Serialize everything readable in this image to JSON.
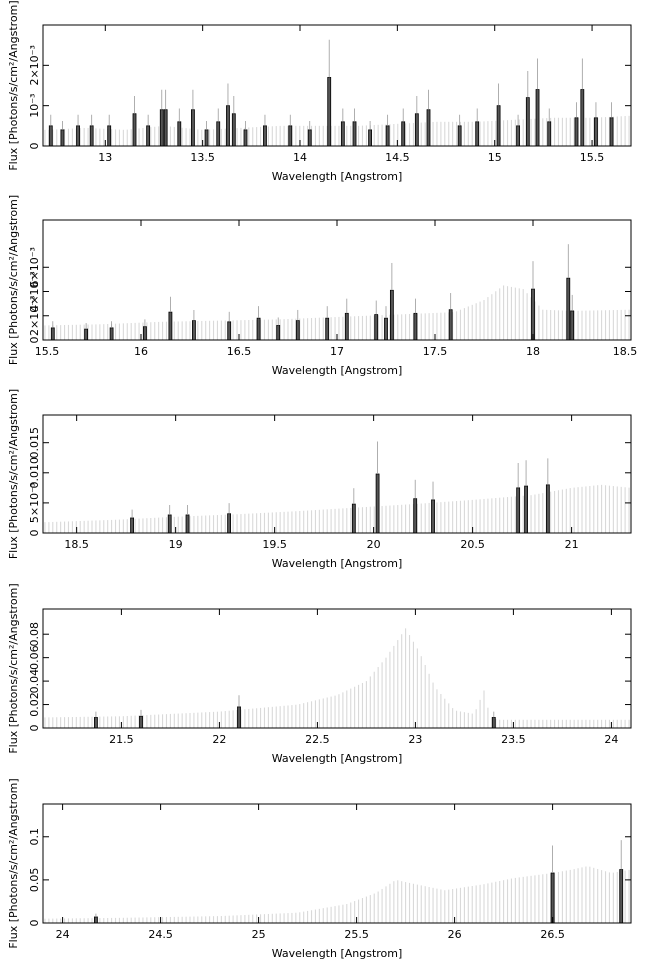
{
  "chart_data": [
    {
      "type": "area",
      "xlabel": "Wavelength [Angstrom]",
      "ylabel": "Flux [Photons/s/cm²/Angstrom]",
      "xlim": [
        12.68,
        15.7
      ],
      "ylim": [
        0,
        0.003
      ],
      "x_ticks": [
        13,
        13.5,
        14,
        14.5,
        15,
        15.5
      ],
      "y_ticks": [
        {
          "value": 0,
          "label": "0"
        },
        {
          "value": 0.001,
          "label": "10⁻³"
        },
        {
          "value": 0.002,
          "label": "2×10⁻³"
        }
      ],
      "series": [
        {
          "role": "model",
          "color": "#d9d9d9",
          "x": [
            12.7,
            12.9,
            13.1,
            13.3,
            13.5,
            13.7,
            13.9,
            14.1,
            14.3,
            14.5,
            14.7,
            14.9,
            15.1,
            15.3,
            15.5,
            15.7
          ],
          "y": [
            0.0004,
            0.00045,
            0.0004,
            0.0005,
            0.0004,
            0.00045,
            0.0005,
            0.0005,
            0.0005,
            0.00055,
            0.0006,
            0.0006,
            0.00065,
            0.0007,
            0.0007,
            0.00075
          ]
        },
        {
          "role": "data",
          "color": "#000000",
          "x": [
            12.72,
            12.78,
            12.86,
            12.93,
            13.02,
            13.15,
            13.22,
            13.29,
            13.31,
            13.38,
            13.45,
            13.52,
            13.58,
            13.63,
            13.66,
            13.72,
            13.82,
            13.95,
            14.05,
            14.15,
            14.22,
            14.28,
            14.36,
            14.45,
            14.53,
            14.6,
            14.66,
            14.82,
            14.91,
            15.02,
            15.12,
            15.17,
            15.22,
            15.28,
            15.42,
            15.45,
            15.52,
            15.6
          ],
          "y": [
            0.0005,
            0.0004,
            0.0005,
            0.0005,
            0.0005,
            0.0008,
            0.0005,
            0.0009,
            0.0009,
            0.0006,
            0.0009,
            0.0004,
            0.0006,
            0.001,
            0.0008,
            0.0004,
            0.0005,
            0.0005,
            0.0004,
            0.0017,
            0.0006,
            0.0006,
            0.0004,
            0.0005,
            0.0006,
            0.0008,
            0.0009,
            0.0005,
            0.0006,
            0.001,
            0.0005,
            0.0012,
            0.0014,
            0.0006,
            0.0007,
            0.0014,
            0.0007,
            0.0007
          ]
        }
      ]
    },
    {
      "type": "area",
      "xlabel": "Wavelength [Angstrom]",
      "ylabel": "Flux [Photons/s/cm²/Angstrom]",
      "xlim": [
        15.5,
        18.5
      ],
      "ylim": [
        0,
        0.0099
      ],
      "x_ticks": [
        15.5,
        16,
        16.5,
        17,
        17.5,
        18,
        18.5
      ],
      "y_ticks": [
        {
          "value": 0,
          "label": "0"
        },
        {
          "value": 0.002,
          "label": "2×10⁻³"
        },
        {
          "value": 0.004,
          "label": "4×10⁻³"
        },
        {
          "value": 0.006,
          "label": "6×10⁻³"
        }
      ],
      "series": [
        {
          "role": "model",
          "color": "#d9d9d9",
          "x": [
            15.5,
            15.8,
            16.1,
            16.4,
            16.7,
            17.0,
            17.3,
            17.6,
            17.75,
            17.85,
            17.95,
            18.05,
            18.2,
            18.5
          ],
          "y": [
            0.0012,
            0.0013,
            0.0015,
            0.0016,
            0.0017,
            0.0019,
            0.0021,
            0.0023,
            0.0033,
            0.0045,
            0.0042,
            0.0025,
            0.0024,
            0.0025
          ]
        },
        {
          "role": "data",
          "color": "#000000",
          "x": [
            15.55,
            15.72,
            15.85,
            16.02,
            16.15,
            16.27,
            16.45,
            16.6,
            16.7,
            16.8,
            16.95,
            17.05,
            17.2,
            17.25,
            17.28,
            17.4,
            17.58,
            18.0,
            18.18,
            18.2
          ],
          "y": [
            0.001,
            0.0009,
            0.001,
            0.0011,
            0.0023,
            0.0016,
            0.0015,
            0.0018,
            0.0012,
            0.0016,
            0.0018,
            0.0022,
            0.0021,
            0.0018,
            0.0041,
            0.0022,
            0.0025,
            0.0042,
            0.0051,
            0.0024
          ]
        }
      ]
    },
    {
      "type": "area",
      "xlabel": "Wavelength [Angstrom]",
      "ylabel": "Flux [Photons/s/cm²/Angstrom]",
      "xlim": [
        18.33,
        21.3
      ],
      "ylim": [
        0,
        0.0196
      ],
      "x_ticks": [
        18.5,
        19,
        19.5,
        20,
        20.5,
        21
      ],
      "y_ticks": [
        {
          "value": 0,
          "label": "0"
        },
        {
          "value": 0.005,
          "label": "5×10⁻³"
        },
        {
          "value": 0.01,
          "label": "0.010"
        },
        {
          "value": 0.015,
          "label": "0.015"
        }
      ],
      "series": [
        {
          "role": "model",
          "color": "#d9d9d9",
          "x": [
            18.35,
            18.7,
            19.0,
            19.3,
            19.6,
            19.9,
            20.2,
            20.5,
            20.8,
            21.0,
            21.15,
            21.3
          ],
          "y": [
            0.0018,
            0.0022,
            0.0027,
            0.0031,
            0.0036,
            0.0042,
            0.0048,
            0.0055,
            0.0063,
            0.0075,
            0.008,
            0.0075
          ]
        },
        {
          "role": "data",
          "color": "#000000",
          "x": [
            18.78,
            18.97,
            19.06,
            19.27,
            19.9,
            20.02,
            20.21,
            20.3,
            20.73,
            20.77,
            20.88
          ],
          "y": [
            0.0025,
            0.003,
            0.003,
            0.0032,
            0.0048,
            0.0098,
            0.0057,
            0.0055,
            0.0075,
            0.0078,
            0.008
          ]
        }
      ]
    },
    {
      "type": "area",
      "xlabel": "Wavelength [Angstrom]",
      "ylabel": "Flux [Photons/s/cm²/Angstrom]",
      "xlim": [
        21.1,
        24.1
      ],
      "ylim": [
        0,
        0.1015
      ],
      "x_ticks": [
        21.5,
        22,
        22.5,
        23,
        23.5,
        24
      ],
      "y_ticks": [
        {
          "value": 0,
          "label": "0"
        },
        {
          "value": 0.02,
          "label": "0.02"
        },
        {
          "value": 0.04,
          "label": "0.04"
        },
        {
          "value": 0.06,
          "label": "0.06"
        },
        {
          "value": 0.08,
          "label": "0.08"
        }
      ],
      "series": [
        {
          "role": "model",
          "color": "#d9d9d9",
          "x": [
            21.1,
            21.5,
            22.0,
            22.4,
            22.6,
            22.75,
            22.85,
            22.95,
            23.02,
            23.1,
            23.2,
            23.3,
            23.35,
            23.38,
            23.42,
            23.6,
            24.1
          ],
          "y": [
            0.009,
            0.01,
            0.014,
            0.02,
            0.028,
            0.04,
            0.06,
            0.085,
            0.065,
            0.035,
            0.015,
            0.012,
            0.032,
            0.01,
            0.007,
            0.007,
            0.007
          ]
        },
        {
          "role": "data",
          "color": "#000000",
          "x": [
            21.37,
            21.6,
            22.1,
            23.4
          ],
          "y": [
            0.009,
            0.01,
            0.018,
            0.009
          ]
        }
      ]
    },
    {
      "type": "area",
      "xlabel": "Wavelength [Angstrom]",
      "ylabel": "Flux [Photons/s/cm²/Angstrom]",
      "xlim": [
        23.9,
        26.9
      ],
      "ylim": [
        0,
        0.138
      ],
      "x_ticks": [
        24,
        24.5,
        25,
        25.5,
        26,
        26.5
      ],
      "y_ticks": [
        {
          "value": 0,
          "label": "0"
        },
        {
          "value": 0.05,
          "label": "0.05"
        },
        {
          "value": 0.1,
          "label": "0.1"
        }
      ],
      "series": [
        {
          "role": "model",
          "color": "#d9d9d9",
          "x": [
            23.9,
            24.3,
            24.8,
            25.2,
            25.45,
            25.6,
            25.7,
            25.8,
            25.95,
            26.15,
            26.3,
            26.5,
            26.6,
            26.68,
            26.8,
            26.9
          ],
          "y": [
            0.005,
            0.006,
            0.008,
            0.012,
            0.022,
            0.035,
            0.05,
            0.045,
            0.038,
            0.045,
            0.052,
            0.058,
            0.062,
            0.066,
            0.058,
            0.062
          ]
        },
        {
          "role": "data",
          "color": "#000000",
          "x": [
            24.17,
            26.5,
            26.85
          ],
          "y": [
            0.007,
            0.058,
            0.062
          ]
        }
      ]
    }
  ]
}
